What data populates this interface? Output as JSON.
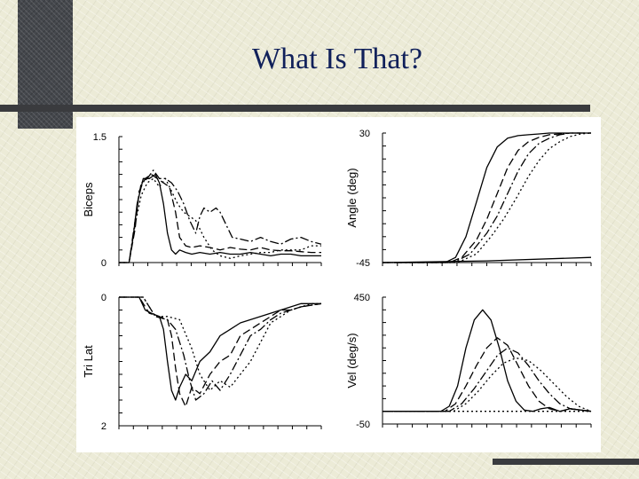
{
  "slide": {
    "title": "What Is That?"
  },
  "chart_data": [
    {
      "type": "line",
      "ylabel": "Biceps",
      "ylim": [
        0,
        1.5
      ],
      "xlim": [
        0,
        1
      ],
      "y_tick_labels": [
        "1.5",
        "0"
      ],
      "series": [
        {
          "style": "solid",
          "x": [
            0,
            0.05,
            0.07,
            0.09,
            0.12,
            0.15,
            0.18,
            0.2,
            0.22,
            0.24,
            0.26,
            0.28,
            0.3,
            0.33,
            0.36,
            0.4,
            0.45,
            0.5,
            0.55,
            0.6,
            0.65,
            0.7,
            0.75,
            0.8,
            0.85,
            0.9,
            0.95,
            1.0
          ],
          "y": [
            0,
            0,
            0.3,
            0.7,
            1.0,
            1.0,
            1.05,
            0.95,
            0.7,
            0.35,
            0.15,
            0.1,
            0.15,
            0.12,
            0.1,
            0.12,
            0.1,
            0.12,
            0.1,
            0.1,
            0.12,
            0.1,
            0.08,
            0.1,
            0.1,
            0.08,
            0.08,
            0.08
          ]
        },
        {
          "style": "dashed",
          "x": [
            0,
            0.05,
            0.08,
            0.1,
            0.13,
            0.16,
            0.19,
            0.22,
            0.25,
            0.28,
            0.3,
            0.33,
            0.36,
            0.4,
            0.45,
            0.5,
            0.55,
            0.6,
            0.65,
            0.7,
            0.75,
            0.8,
            0.85,
            0.9,
            0.95,
            1.0
          ],
          "y": [
            0,
            0,
            0.4,
            0.85,
            1.0,
            1.05,
            1.0,
            0.95,
            0.9,
            0.6,
            0.3,
            0.2,
            0.18,
            0.2,
            0.18,
            0.15,
            0.18,
            0.16,
            0.15,
            0.18,
            0.15,
            0.14,
            0.14,
            0.13,
            0.12,
            0.12
          ]
        },
        {
          "style": "dashdot",
          "x": [
            0,
            0.05,
            0.08,
            0.11,
            0.14,
            0.17,
            0.2,
            0.23,
            0.26,
            0.29,
            0.32,
            0.35,
            0.38,
            0.4,
            0.42,
            0.45,
            0.48,
            0.5,
            0.53,
            0.56,
            0.6,
            0.65,
            0.7,
            0.75,
            0.8,
            0.85,
            0.9,
            0.95,
            1.0
          ],
          "y": [
            0,
            0,
            0.5,
            0.95,
            1.0,
            1.1,
            1.0,
            1.0,
            0.95,
            0.85,
            0.7,
            0.5,
            0.35,
            0.55,
            0.65,
            0.6,
            0.65,
            0.6,
            0.45,
            0.3,
            0.28,
            0.25,
            0.3,
            0.25,
            0.22,
            0.28,
            0.3,
            0.25,
            0.22
          ]
        },
        {
          "style": "dotted",
          "x": [
            0,
            0.05,
            0.08,
            0.11,
            0.14,
            0.17,
            0.2,
            0.23,
            0.26,
            0.29,
            0.32,
            0.35,
            0.38,
            0.42,
            0.46,
            0.5,
            0.55,
            0.6,
            0.65,
            0.7,
            0.75,
            0.8,
            0.85,
            0.9,
            0.95,
            1.0
          ],
          "y": [
            0,
            0,
            0.45,
            0.8,
            0.95,
            1.0,
            0.9,
            1.0,
            0.85,
            0.7,
            0.6,
            0.55,
            0.5,
            0.3,
            0.15,
            0.08,
            0.05,
            0.08,
            0.1,
            0.12,
            0.12,
            0.15,
            0.15,
            0.15,
            0.2,
            0.2
          ]
        }
      ]
    },
    {
      "type": "line",
      "ylabel": "Angle (deg)",
      "ylim": [
        -45,
        30
      ],
      "xlim": [
        0,
        1
      ],
      "y_tick_labels": [
        "30",
        "-45"
      ],
      "series": [
        {
          "style": "solid",
          "x": [
            0,
            0.3,
            0.35,
            0.4,
            0.45,
            0.5,
            0.55,
            0.6,
            0.65,
            0.7,
            0.75,
            0.8,
            0.9,
            1.0
          ],
          "y": [
            -45,
            -45,
            -42,
            -30,
            -10,
            10,
            22,
            27,
            28.5,
            29,
            29.5,
            30,
            30,
            30
          ]
        },
        {
          "style": "dashed",
          "x": [
            0,
            0.32,
            0.38,
            0.45,
            0.5,
            0.55,
            0.6,
            0.65,
            0.7,
            0.75,
            0.8,
            0.85,
            0.9,
            1.0
          ],
          "y": [
            -45,
            -45,
            -42,
            -32,
            -20,
            -5,
            10,
            20,
            25,
            27.5,
            29,
            29.5,
            30,
            30
          ]
        },
        {
          "style": "dashdot",
          "x": [
            0,
            0.34,
            0.42,
            0.5,
            0.55,
            0.6,
            0.65,
            0.7,
            0.75,
            0.8,
            0.85,
            0.9,
            0.95,
            1.0
          ],
          "y": [
            -45,
            -45,
            -40,
            -28,
            -18,
            -5,
            8,
            18,
            24,
            27,
            29,
            30,
            30,
            30
          ]
        },
        {
          "style": "dotted",
          "x": [
            0,
            0.36,
            0.45,
            0.52,
            0.58,
            0.64,
            0.7,
            0.75,
            0.8,
            0.85,
            0.9,
            0.95,
            1.0
          ],
          "y": [
            -45,
            -45,
            -40,
            -30,
            -20,
            -8,
            5,
            14,
            21,
            25,
            28,
            29.5,
            30
          ]
        },
        {
          "style": "solid",
          "x": [
            0,
            0.5,
            1.0
          ],
          "y": [
            -45,
            -44,
            -42
          ]
        }
      ]
    },
    {
      "type": "line",
      "ylabel": "Tri Lat",
      "ylim": [
        0,
        2
      ],
      "y_reversed": true,
      "xlim": [
        0,
        1
      ],
      "y_tick_labels": [
        "0",
        "2"
      ],
      "series": [
        {
          "style": "solid",
          "x": [
            0,
            0.1,
            0.13,
            0.16,
            0.2,
            0.22,
            0.24,
            0.26,
            0.28,
            0.3,
            0.33,
            0.36,
            0.4,
            0.45,
            0.5,
            0.55,
            0.6,
            0.65,
            0.7,
            0.75,
            0.8,
            0.85,
            0.9,
            1.0
          ],
          "y": [
            0,
            0,
            0.2,
            0.25,
            0.3,
            0.5,
            1.0,
            1.45,
            1.6,
            1.4,
            1.2,
            1.3,
            1.0,
            0.85,
            0.6,
            0.5,
            0.4,
            0.35,
            0.3,
            0.25,
            0.2,
            0.15,
            0.1,
            0.1
          ]
        },
        {
          "style": "dashed",
          "x": [
            0,
            0.1,
            0.15,
            0.2,
            0.24,
            0.26,
            0.28,
            0.3,
            0.33,
            0.36,
            0.4,
            0.45,
            0.5,
            0.55,
            0.6,
            0.65,
            0.7,
            0.75,
            0.8,
            0.85,
            0.9,
            1.0
          ],
          "y": [
            0,
            0,
            0.25,
            0.3,
            0.35,
            0.6,
            1.1,
            1.5,
            1.7,
            1.4,
            1.5,
            1.2,
            1.0,
            0.9,
            0.6,
            0.5,
            0.4,
            0.3,
            0.2,
            0.2,
            0.15,
            0.1
          ]
        },
        {
          "style": "dashdot",
          "x": [
            0,
            0.12,
            0.18,
            0.24,
            0.28,
            0.32,
            0.35,
            0.38,
            0.42,
            0.46,
            0.5,
            0.55,
            0.6,
            0.65,
            0.7,
            0.75,
            0.8,
            0.85,
            0.9,
            1.0
          ],
          "y": [
            0,
            0,
            0.3,
            0.35,
            0.5,
            0.9,
            1.3,
            1.6,
            1.5,
            1.3,
            1.45,
            1.2,
            0.9,
            0.6,
            0.5,
            0.35,
            0.25,
            0.2,
            0.15,
            0.1
          ]
        },
        {
          "style": "dotted",
          "x": [
            0,
            0.12,
            0.18,
            0.24,
            0.3,
            0.36,
            0.4,
            0.45,
            0.5,
            0.55,
            0.6,
            0.65,
            0.7,
            0.75,
            0.8,
            0.85,
            0.9,
            0.95,
            1.0
          ],
          "y": [
            0,
            0,
            0.3,
            0.3,
            0.35,
            0.8,
            1.2,
            1.45,
            1.3,
            1.4,
            1.2,
            1.0,
            0.7,
            0.4,
            0.3,
            0.2,
            0.15,
            0.1,
            0.1
          ]
        }
      ]
    },
    {
      "type": "line",
      "ylabel": "Vel (deg/s)",
      "ylim": [
        -50,
        450
      ],
      "xlim": [
        0,
        1
      ],
      "y_tick_labels": [
        "450",
        "-50"
      ],
      "series": [
        {
          "style": "solid",
          "x": [
            0,
            0.28,
            0.32,
            0.36,
            0.4,
            0.44,
            0.48,
            0.52,
            0.56,
            0.6,
            0.64,
            0.68,
            0.72,
            0.76,
            0.8,
            0.85,
            0.9,
            1.0
          ],
          "y": [
            0,
            0,
            20,
            100,
            250,
            360,
            400,
            360,
            250,
            120,
            40,
            5,
            0,
            10,
            15,
            0,
            10,
            0
          ]
        },
        {
          "style": "dashed",
          "x": [
            0,
            0.3,
            0.35,
            0.4,
            0.45,
            0.5,
            0.55,
            0.6,
            0.65,
            0.7,
            0.75,
            0.8,
            0.85,
            0.9,
            1.0
          ],
          "y": [
            0,
            0,
            30,
            100,
            180,
            250,
            290,
            260,
            180,
            100,
            40,
            10,
            0,
            10,
            0
          ]
        },
        {
          "style": "dashdot",
          "x": [
            0,
            0.32,
            0.38,
            0.44,
            0.5,
            0.55,
            0.6,
            0.65,
            0.7,
            0.75,
            0.8,
            0.85,
            0.9,
            0.95,
            1.0
          ],
          "y": [
            0,
            0,
            30,
            90,
            160,
            220,
            250,
            230,
            180,
            120,
            70,
            30,
            10,
            5,
            0
          ]
        },
        {
          "style": "dotted",
          "x": [
            0,
            0.34,
            0.4,
            0.46,
            0.52,
            0.58,
            0.64,
            0.7,
            0.76,
            0.82,
            0.88,
            0.94,
            1.0
          ],
          "y": [
            0,
            0,
            30,
            80,
            140,
            190,
            210,
            200,
            160,
            110,
            60,
            20,
            0
          ]
        },
        {
          "style": "dotted",
          "x": [
            0,
            0.4,
            1.0
          ],
          "y": [
            0,
            0,
            0
          ]
        }
      ]
    }
  ]
}
